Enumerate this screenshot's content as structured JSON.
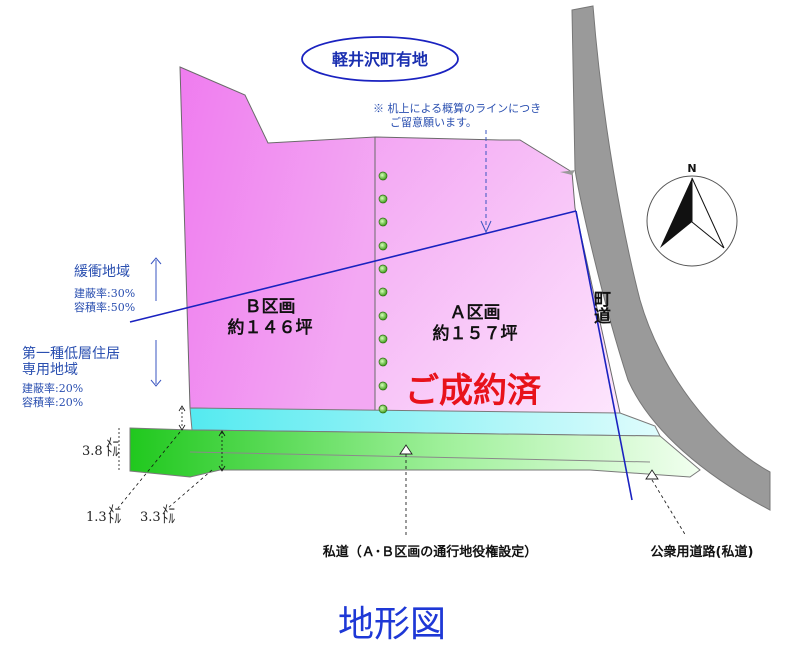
{
  "owner_label": "軽井沢町有地",
  "note_line1": "※ 机上による概算のラインにつき",
  "note_line2": "ご留意願います。",
  "buffer_zone": "緩衝地域",
  "buffer_coverage": "建蔽率:30%",
  "buffer_far": "容積率:50%",
  "residential_line1": "第一種低層住居",
  "residential_line2": "専用地域",
  "res_coverage": "建蔽率:20%",
  "res_far": "容積率:20%",
  "lot_b_name": "Ｂ区画",
  "lot_b_area": "約１４６坪",
  "lot_a_name": "Ａ区画",
  "lot_a_area": "約１５７坪",
  "sold_label": "ご成約済",
  "town_road": "町道",
  "north": "N",
  "dim_38": "3.8",
  "dim_13": "1.3",
  "dim_33": "3.3",
  "dim_unit_top": "ﾒｰ",
  "dim_unit_bottom": "ﾄﾙ",
  "private_road_label": "私道（Ａ･Ｂ区画の通行地役権設定）",
  "public_road_label": "公衆用道路(私道)",
  "title": "地形図",
  "colors": {
    "lot_pink": "#f08cf0",
    "strip_cyan": "#7ff0f0",
    "strip_green": "#3ad43a",
    "road_gray": "#9a9a9a",
    "text_blue": "#2a4fb0",
    "sold_red": "#e8121b",
    "title_blue": "#1e38d6",
    "post_green": "#5fcf3a"
  }
}
